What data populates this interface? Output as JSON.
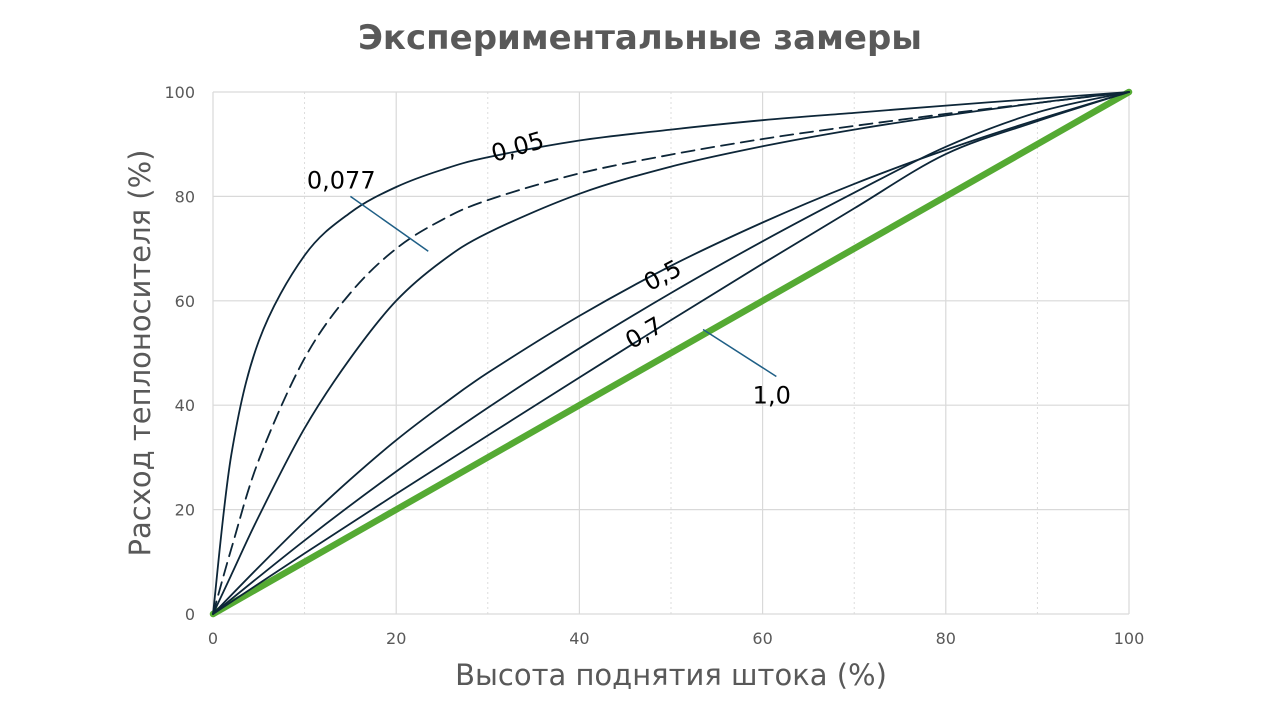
{
  "chart_data": {
    "type": "line",
    "title": "Экспериментальные замеры",
    "xlabel": "Высота поднятия штока (%)",
    "ylabel": "Расход теплоносителя (%)",
    "xlim": [
      0,
      100
    ],
    "ylim": [
      0,
      100
    ],
    "x_ticks": [
      "0",
      "20",
      "40",
      "60",
      "80",
      "100"
    ],
    "y_ticks": [
      "0",
      "20",
      "40",
      "60",
      "80",
      "100"
    ],
    "grid": true,
    "legend": "none",
    "colors": {
      "curve": "#0d2638",
      "linear": "#55aa33",
      "leader": "#1f5f86",
      "grid": "#d9d9d9"
    },
    "series": [
      {
        "name": "0,05",
        "style": "solid",
        "x": [
          0,
          2,
          5,
          10,
          15,
          20,
          25,
          30,
          40,
          50,
          60,
          70,
          80,
          90,
          100
        ],
        "y": [
          0,
          30.5,
          52.3,
          68.7,
          76.9,
          81.8,
          85.1,
          87.5,
          90.7,
          92.8,
          94.6,
          96.0,
          97.4,
          98.7,
          100
        ]
      },
      {
        "name": "0,077",
        "style": "dashed",
        "x": [
          0,
          2,
          5,
          10,
          15,
          20,
          25,
          30,
          40,
          50,
          60,
          70,
          80,
          90,
          100
        ],
        "y": [
          0,
          12.5,
          29.5,
          49.0,
          61.5,
          70.0,
          75.5,
          79.3,
          84.4,
          88.0,
          91.0,
          93.5,
          95.8,
          97.9,
          100
        ]
      },
      {
        "name": "",
        "style": "solid",
        "x": [
          0,
          2,
          5,
          10,
          15,
          20,
          25,
          30,
          40,
          50,
          60,
          70,
          80,
          90,
          100
        ],
        "y": [
          0,
          7.5,
          18.7,
          35.6,
          49.0,
          60.0,
          67.6,
          73.0,
          80.5,
          85.7,
          89.6,
          92.8,
          95.5,
          97.9,
          100
        ]
      },
      {
        "name": "0,5",
        "style": "solid",
        "x": [
          0,
          5,
          10,
          15,
          20,
          25,
          30,
          40,
          50,
          60,
          70,
          80,
          90,
          100
        ],
        "y": [
          0,
          9.0,
          17.7,
          25.8,
          33.3,
          40.0,
          46.2,
          57.1,
          66.7,
          75.0,
          82.4,
          88.9,
          94.7,
          100
        ]
      },
      {
        "name": "0,7",
        "style": "solid",
        "x": [
          0,
          10,
          20,
          30,
          40,
          50,
          60,
          70,
          80,
          90,
          100
        ],
        "y": [
          0,
          14.1,
          27.3,
          39.5,
          50.9,
          61.5,
          71.4,
          80.7,
          89.5,
          96.1,
          100
        ]
      },
      {
        "name": "",
        "style": "solid",
        "x": [
          0,
          10,
          20,
          30,
          40,
          50,
          60,
          70,
          80,
          90,
          100
        ],
        "y": [
          0,
          11.6,
          23.0,
          34.2,
          45.3,
          56.3,
          67.1,
          77.7,
          88.1,
          94.4,
          100
        ]
      },
      {
        "name": "1,0",
        "style": "thick",
        "x": [
          0,
          100
        ],
        "y": [
          0,
          100
        ]
      }
    ],
    "annotations": [
      {
        "text": "0,05",
        "x": 33.5,
        "y": 88.0,
        "rotate": -16,
        "leader": null
      },
      {
        "text": "0,077",
        "x": 14.0,
        "y": 81.5,
        "rotate": 0,
        "leader": [
          [
            15,
            80
          ],
          [
            23.5,
            69.5
          ]
        ]
      },
      {
        "text": "0,5",
        "x": 49.5,
        "y": 63.5,
        "rotate": -28,
        "leader": null
      },
      {
        "text": "0,7",
        "x": 47.5,
        "y": 52.5,
        "rotate": -30,
        "leader": []
      },
      {
        "text": "1,0",
        "x": 61.0,
        "y": 40.3,
        "rotate": 0,
        "leader": [
          [
            61.5,
            45.5
          ],
          [
            53.5,
            54.5
          ]
        ]
      }
    ]
  }
}
